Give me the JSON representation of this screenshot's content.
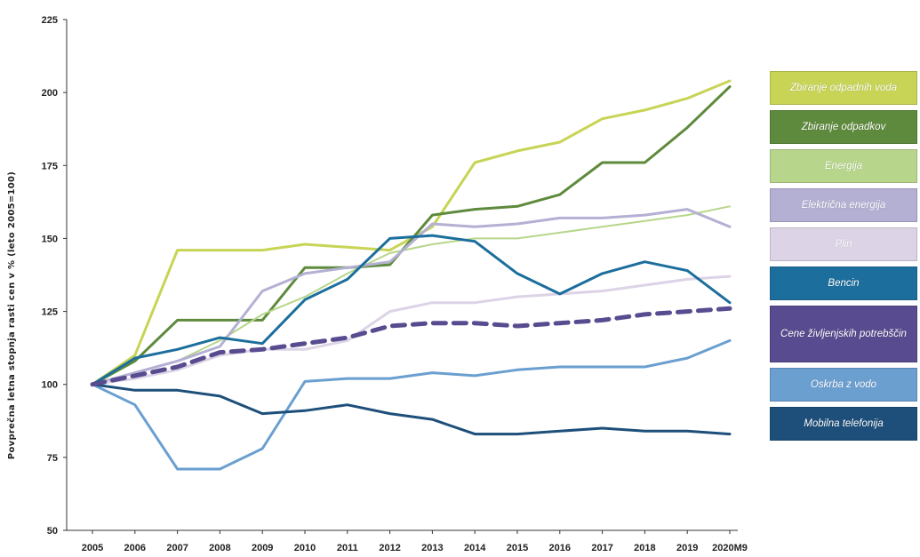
{
  "chart_data": {
    "type": "line",
    "title": "",
    "xlabel": "",
    "ylabel": "Povprečna letna stopnja rasti cen v % (leto 2005=100)",
    "ylim": [
      50,
      225
    ],
    "yticks": [
      50,
      75,
      100,
      125,
      150,
      175,
      200,
      225
    ],
    "x": [
      "2005",
      "2006",
      "2007",
      "2008",
      "2009",
      "2010",
      "2011",
      "2012",
      "2013",
      "2014",
      "2015",
      "2016",
      "2017",
      "2018",
      "2019",
      "2020M9"
    ],
    "grid": false,
    "legend_position": "right",
    "series": [
      {
        "name": "Zbiranje odpadnih voda",
        "color": "#c8d455",
        "width": 3,
        "dashed": false,
        "values": [
          100,
          110,
          146,
          146,
          146,
          148,
          147,
          146,
          154,
          176,
          180,
          183,
          191,
          194,
          198,
          204
        ]
      },
      {
        "name": "Zbiranje odpadkov",
        "color": "#5e8a3d",
        "width": 3,
        "dashed": false,
        "values": [
          100,
          108,
          122,
          122,
          122,
          140,
          140,
          141,
          158,
          160,
          161,
          165,
          176,
          176,
          188,
          202
        ]
      },
      {
        "name": "Energija",
        "color": "#b7d68b",
        "width": 2,
        "dashed": false,
        "values": [
          100,
          104,
          108,
          115,
          124,
          130,
          138,
          145,
          148,
          150,
          150,
          152,
          154,
          156,
          158,
          161
        ]
      },
      {
        "name": "Električna energija",
        "color": "#b4b0d4",
        "width": 3,
        "dashed": false,
        "values": [
          100,
          104,
          108,
          113,
          132,
          138,
          140,
          142,
          155,
          154,
          155,
          157,
          157,
          158,
          160,
          154
        ]
      },
      {
        "name": "Plin",
        "color": "#ddd3e6",
        "width": 3,
        "dashed": false,
        "values": [
          100,
          102,
          105,
          110,
          112,
          112,
          115,
          125,
          128,
          128,
          130,
          131,
          132,
          134,
          136,
          137
        ]
      },
      {
        "name": "Bencin",
        "color": "#1c6e9c",
        "width": 3,
        "dashed": false,
        "values": [
          100,
          109,
          112,
          116,
          114,
          129,
          136,
          150,
          151,
          149,
          138,
          131,
          138,
          142,
          139,
          128
        ]
      },
      {
        "name": "Cene življenjskih potrebščin",
        "color": "#584b8f",
        "width": 5,
        "dashed": true,
        "values": [
          100,
          103,
          106,
          111,
          112,
          114,
          116,
          120,
          121,
          121,
          120,
          121,
          122,
          124,
          125,
          126
        ]
      },
      {
        "name": "Oskrba z vodo",
        "color": "#6a9fd0",
        "width": 3,
        "dashed": false,
        "values": [
          100,
          93,
          71,
          71,
          78,
          101,
          102,
          102,
          104,
          103,
          105,
          106,
          106,
          106,
          109,
          115
        ]
      },
      {
        "name": "Mobilna telefonija",
        "color": "#1d4f7a",
        "width": 3,
        "dashed": false,
        "values": [
          100,
          98,
          98,
          96,
          90,
          91,
          93,
          90,
          88,
          83,
          83,
          84,
          85,
          84,
          84,
          83
        ]
      }
    ]
  }
}
